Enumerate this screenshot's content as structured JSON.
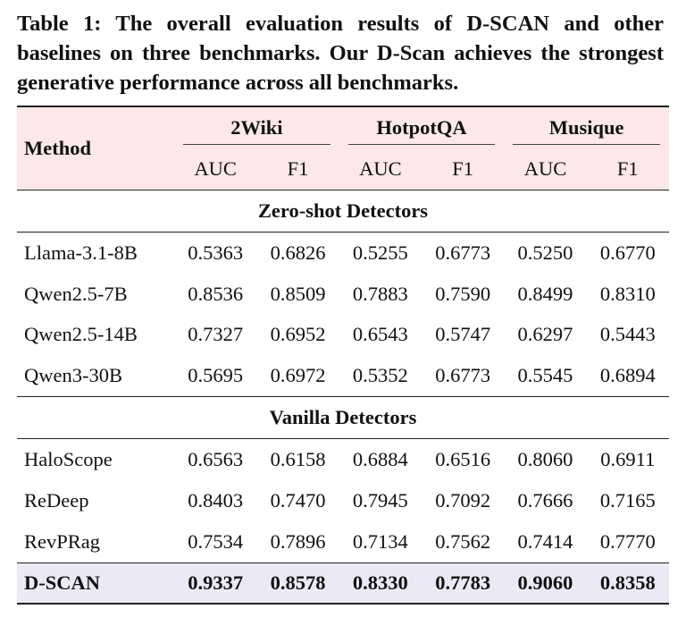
{
  "caption": "Table 1: The overall evaluation results of D-SCAN and other baselines on three benchmarks. Our D-Scan achieves the strongest generative performance across all benchmarks.",
  "header": {
    "method": "Method",
    "groups": [
      "2Wiki",
      "HotpotQA",
      "Musique"
    ],
    "metrics": [
      "AUC",
      "F1",
      "AUC",
      "F1",
      "AUC",
      "F1"
    ]
  },
  "sections": [
    {
      "title": "Zero-shot Detectors",
      "rows": [
        {
          "method": "Llama-3.1-8B",
          "values": [
            "0.5363",
            "0.6826",
            "0.5255",
            "0.6773",
            "0.5250",
            "0.6770"
          ]
        },
        {
          "method": "Qwen2.5-7B",
          "values": [
            "0.8536",
            "0.8509",
            "0.7883",
            "0.7590",
            "0.8499",
            "0.8310"
          ]
        },
        {
          "method": "Qwen2.5-14B",
          "values": [
            "0.7327",
            "0.6952",
            "0.6543",
            "0.5747",
            "0.6297",
            "0.5443"
          ]
        },
        {
          "method": "Qwen3-30B",
          "values": [
            "0.5695",
            "0.6972",
            "0.5352",
            "0.6773",
            "0.5545",
            "0.6894"
          ]
        }
      ]
    },
    {
      "title": "Vanilla Detectors",
      "rows": [
        {
          "method": "HaloScope",
          "values": [
            "0.6563",
            "0.6158",
            "0.6884",
            "0.6516",
            "0.8060",
            "0.6911"
          ]
        },
        {
          "method": "ReDeep",
          "values": [
            "0.8403",
            "0.7470",
            "0.7945",
            "0.7092",
            "0.7666",
            "0.7165"
          ]
        },
        {
          "method": "RevPRag",
          "values": [
            "0.7534",
            "0.7896",
            "0.7134",
            "0.7562",
            "0.7414",
            "0.7770"
          ]
        }
      ]
    }
  ],
  "ours": {
    "method": "D-SCAN",
    "values": [
      "0.9337",
      "0.8578",
      "0.8330",
      "0.7783",
      "0.9060",
      "0.8358"
    ]
  }
}
